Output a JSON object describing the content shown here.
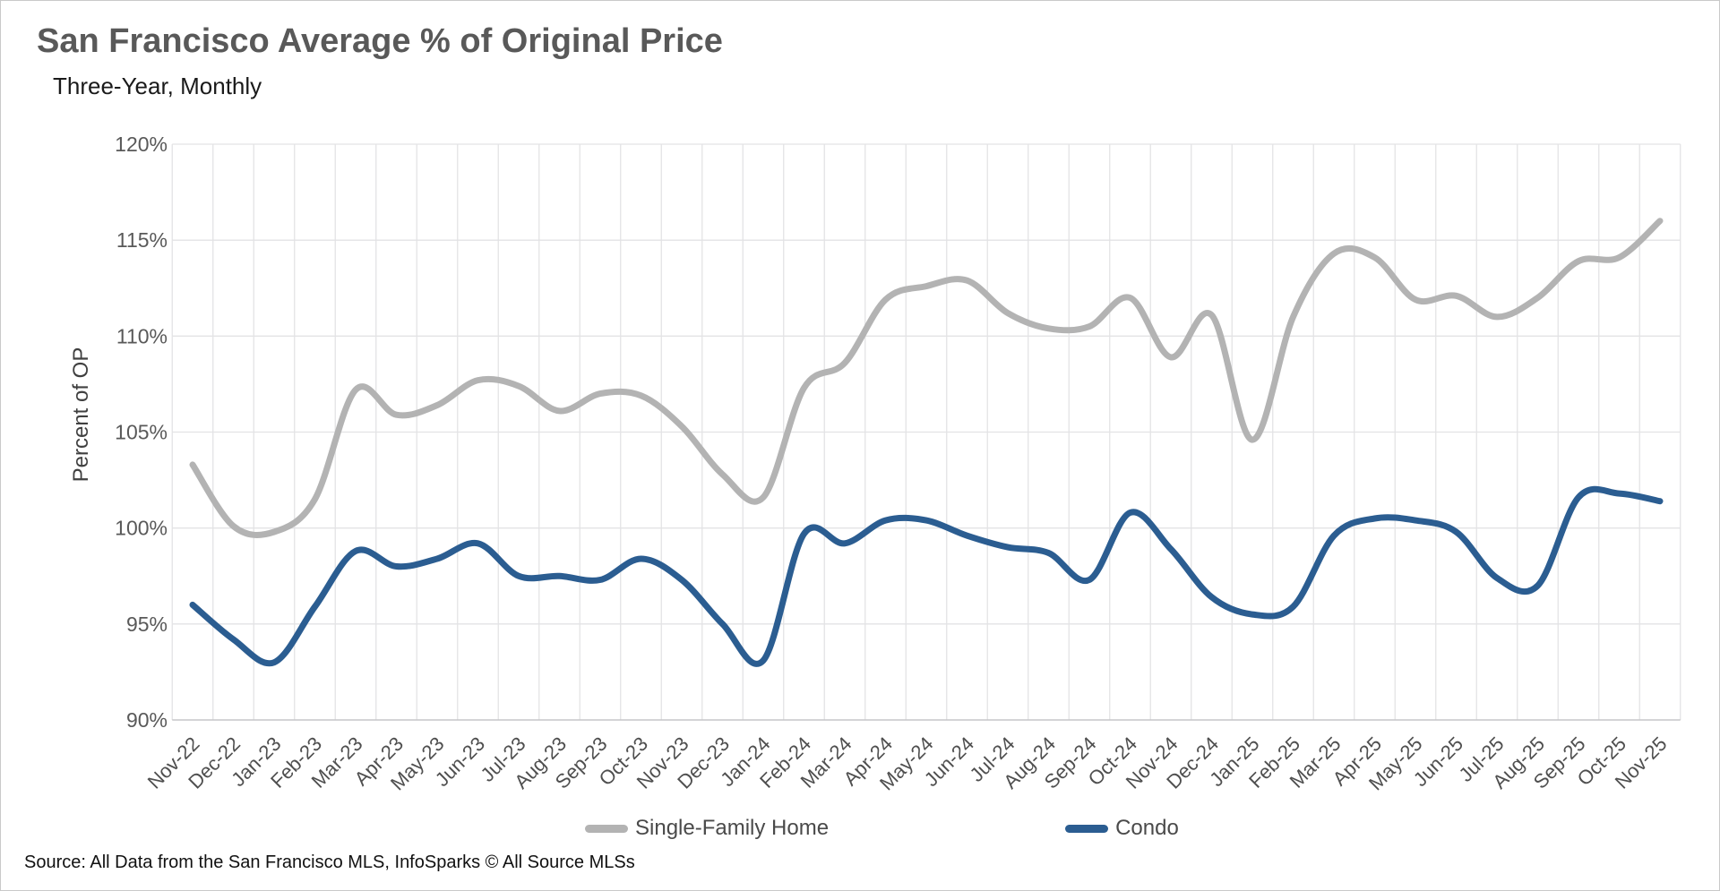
{
  "header": {
    "title": "San Francisco Average % of Original Price",
    "subtitle": "Three-Year, Monthly"
  },
  "chart_data": {
    "type": "line",
    "title": "San Francisco Average % of Original Price",
    "subtitle": "Three-Year, Monthly",
    "xlabel": "",
    "ylabel": "Percent of OP",
    "ylim": [
      90,
      120
    ],
    "ytick_step": 5,
    "ytick_labels": [
      "90%",
      "95%",
      "100%",
      "105%",
      "110%",
      "115%",
      "120%"
    ],
    "grid": "both",
    "legend_position": "bottom",
    "categories": [
      "Nov-22",
      "Dec-22",
      "Jan-23",
      "Feb-23",
      "Mar-23",
      "Apr-23",
      "May-23",
      "Jun-23",
      "Jul-23",
      "Aug-23",
      "Sep-23",
      "Oct-23",
      "Nov-23",
      "Dec-23",
      "Jan-24",
      "Feb-24",
      "Mar-24",
      "Apr-24",
      "May-24",
      "Jun-24",
      "Jul-24",
      "Aug-24",
      "Sep-24",
      "Oct-24",
      "Nov-24",
      "Dec-24",
      "Jan-25",
      "Feb-25",
      "Mar-25",
      "Apr-25",
      "May-25",
      "Jun-25",
      "Jul-25",
      "Aug-25",
      "Sep-25",
      "Oct-25",
      "Nov-25"
    ],
    "series": [
      {
        "name": "Single-Family Home",
        "color": "#b3b3b3",
        "values": [
          103.3,
          100.1,
          99.8,
          101.5,
          107.2,
          105.9,
          106.4,
          107.7,
          107.4,
          106.1,
          107.0,
          106.9,
          105.3,
          102.8,
          101.6,
          107.3,
          108.6,
          111.9,
          112.6,
          112.9,
          111.2,
          110.4,
          110.5,
          112.0,
          108.9,
          111.1,
          104.6,
          111.0,
          114.3,
          114.1,
          111.9,
          112.1,
          111.0,
          112.0,
          113.9,
          114.1,
          116.0
        ]
      },
      {
        "name": "Condo",
        "color": "#2b5d91",
        "values": [
          96.0,
          94.2,
          93.0,
          95.9,
          98.8,
          98.0,
          98.4,
          99.2,
          97.5,
          97.5,
          97.3,
          98.4,
          97.3,
          95.0,
          93.1,
          99.7,
          99.2,
          100.4,
          100.4,
          99.6,
          99.0,
          98.7,
          97.3,
          100.8,
          98.9,
          96.4,
          95.5,
          95.9,
          99.6,
          100.5,
          100.4,
          99.8,
          97.4,
          97.0,
          101.6,
          101.8,
          101.4
        ]
      }
    ]
  },
  "legend": {
    "items": [
      {
        "label": "Single-Family Home",
        "color": "#b3b3b3"
      },
      {
        "label": "Condo",
        "color": "#2b5d91"
      }
    ]
  },
  "footer": {
    "source": "Source: All Data from the San Francisco MLS, InfoSparks © All Source MLSs"
  }
}
